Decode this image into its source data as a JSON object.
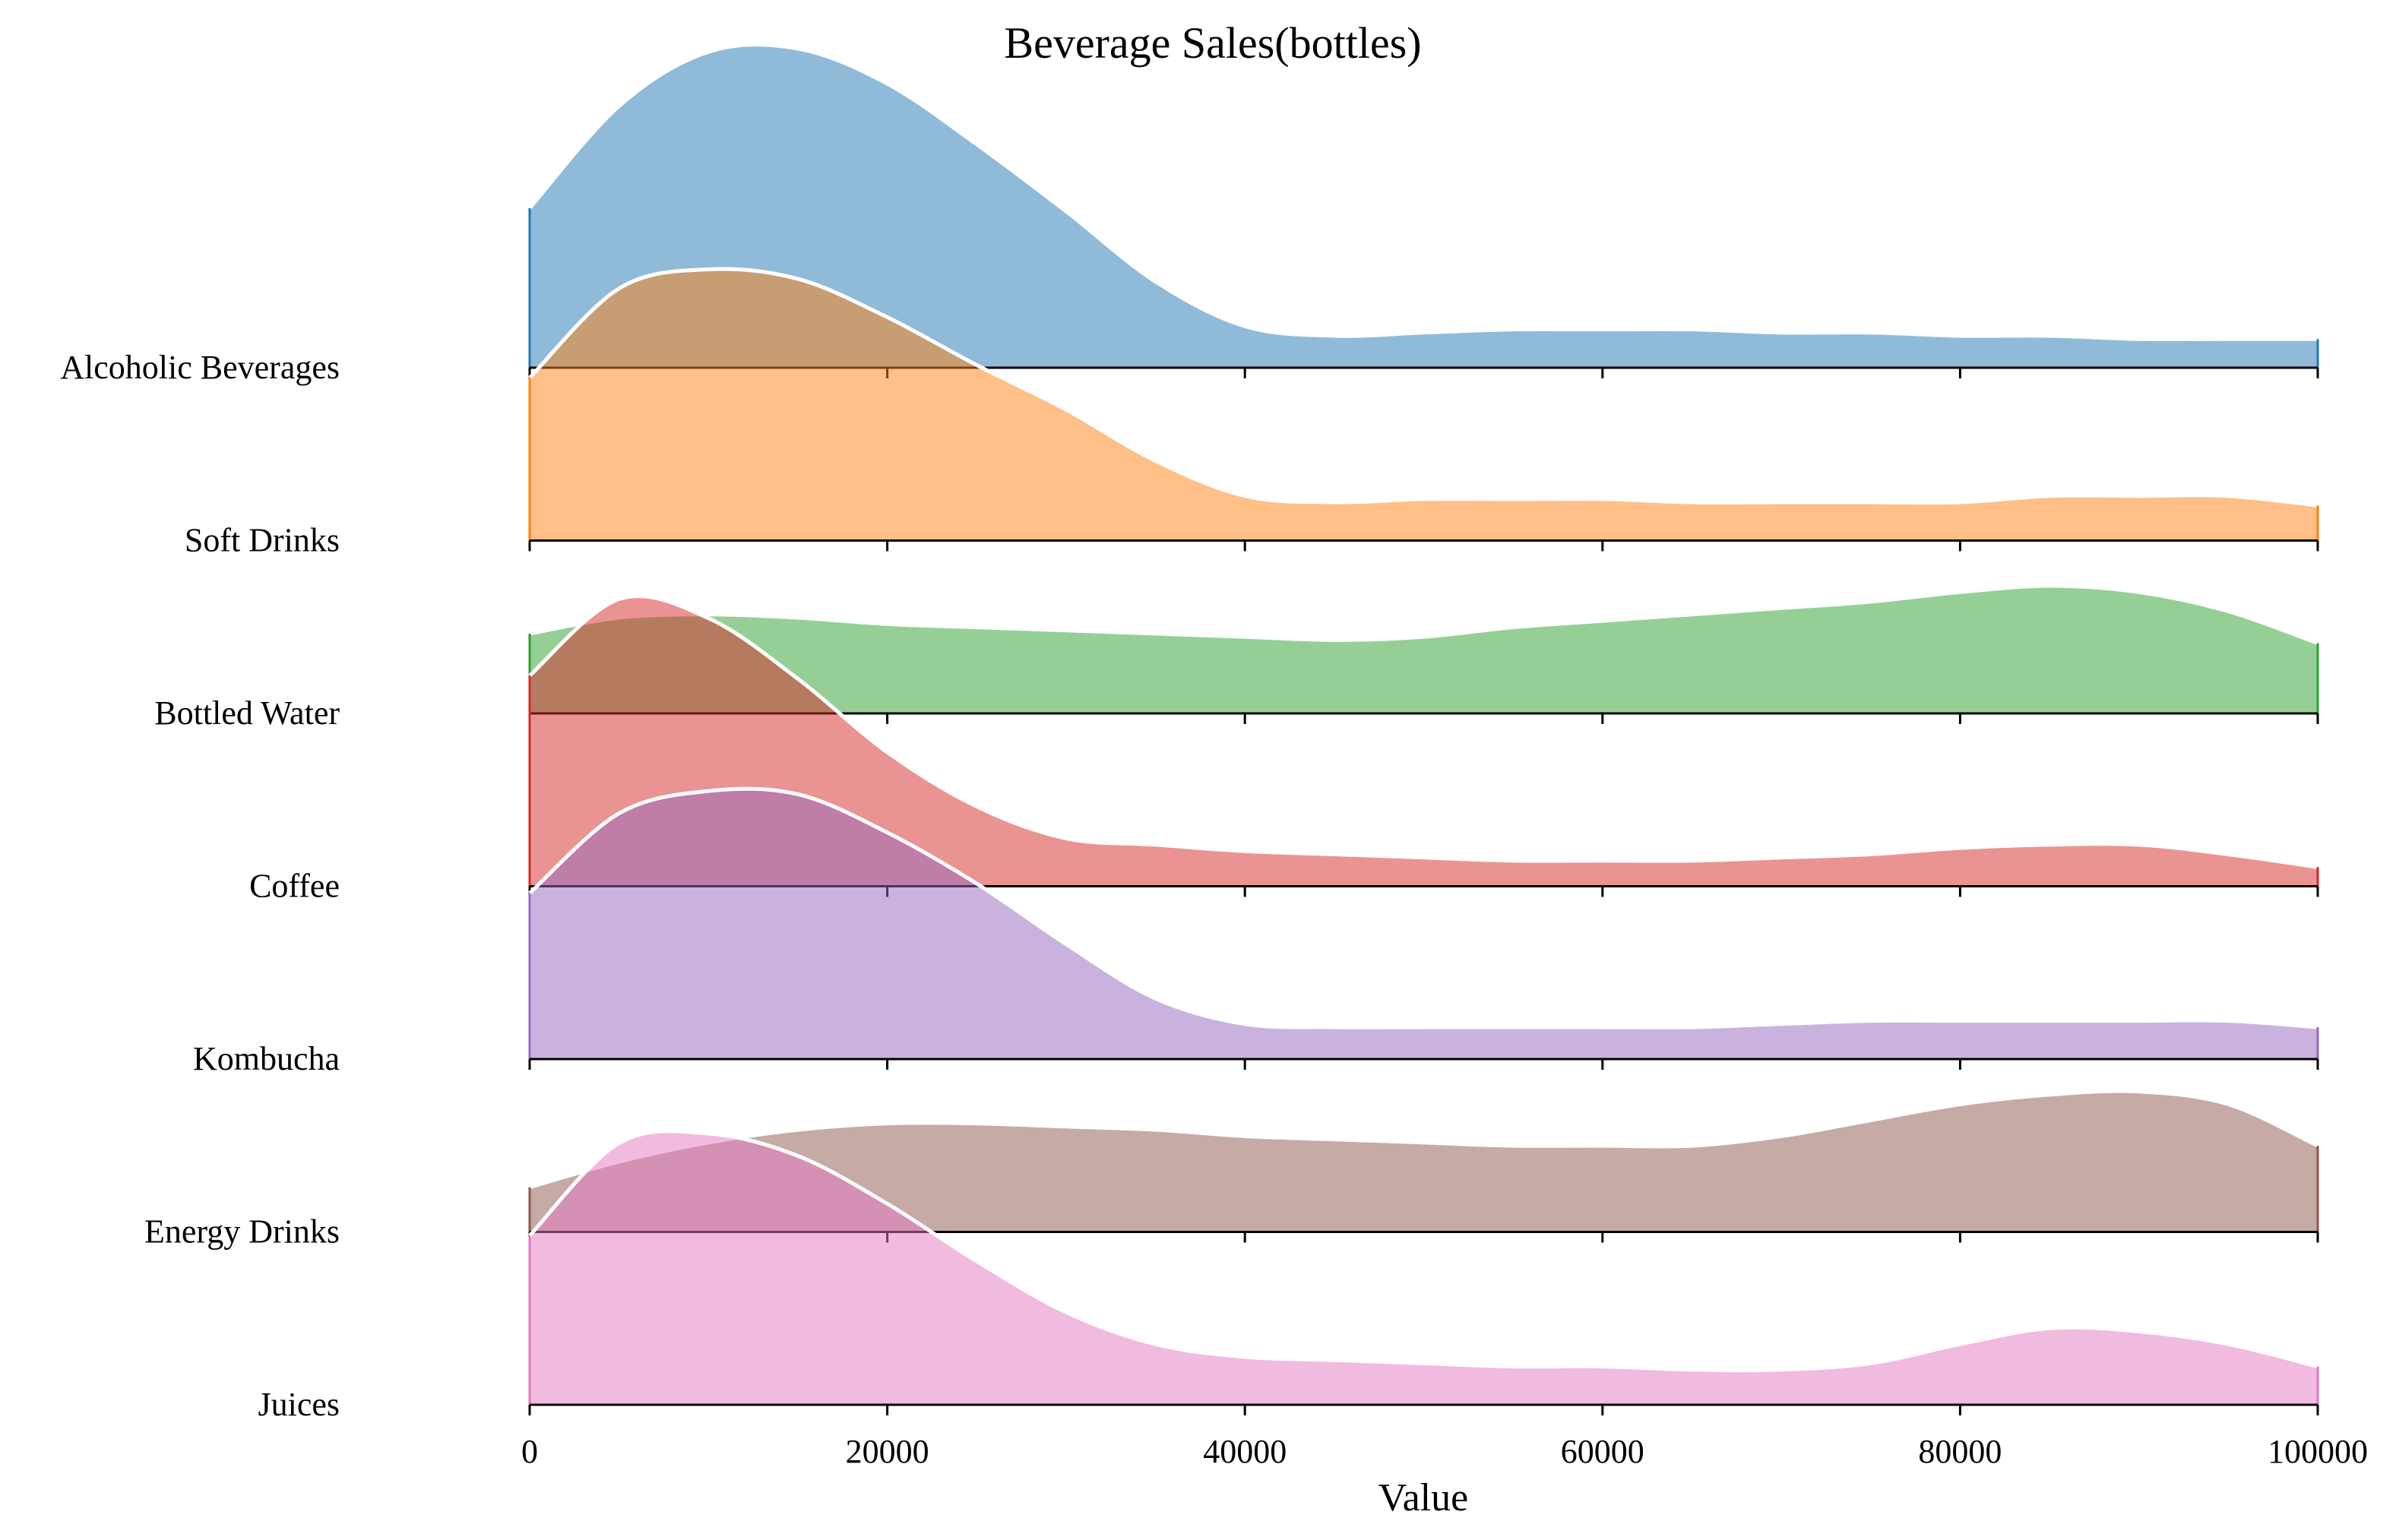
{
  "chart_data": {
    "type": "area",
    "subtype": "ridgeline",
    "title": "Beverage Sales(bottles)",
    "xlabel": "Value",
    "ylabel": "",
    "xlim": [
      0,
      100000
    ],
    "xticks": [
      "0",
      "20000",
      "40000",
      "60000",
      "80000",
      "100000"
    ],
    "grid": false,
    "x": [
      0,
      5000,
      10000,
      15000,
      20000,
      25000,
      30000,
      35000,
      40000,
      45000,
      50000,
      55000,
      60000,
      65000,
      70000,
      75000,
      80000,
      85000,
      90000,
      95000,
      100000
    ],
    "series": [
      {
        "name": "Alcoholic Beverages",
        "color": "#1f77b4",
        "values": [
          0.5,
          0.82,
          0.99,
          1.0,
          0.89,
          0.7,
          0.49,
          0.27,
          0.13,
          0.1,
          0.11,
          0.12,
          0.12,
          0.12,
          0.11,
          0.11,
          0.1,
          0.1,
          0.09,
          0.09,
          0.09
        ]
      },
      {
        "name": "Soft Drinks",
        "color": "#ff7f0e",
        "values": [
          0.51,
          0.79,
          0.85,
          0.82,
          0.7,
          0.55,
          0.41,
          0.25,
          0.14,
          0.12,
          0.13,
          0.13,
          0.13,
          0.12,
          0.12,
          0.12,
          0.12,
          0.14,
          0.14,
          0.14,
          0.11
        ]
      },
      {
        "name": "Bottled Water",
        "color": "#2ca02c",
        "values": [
          0.25,
          0.3,
          0.31,
          0.3,
          0.28,
          0.27,
          0.26,
          0.25,
          0.24,
          0.23,
          0.24,
          0.27,
          0.29,
          0.31,
          0.33,
          0.35,
          0.38,
          0.4,
          0.38,
          0.32,
          0.22
        ]
      },
      {
        "name": "Coffee",
        "color": "#d62728",
        "values": [
          0.66,
          0.9,
          0.84,
          0.65,
          0.42,
          0.25,
          0.15,
          0.13,
          0.11,
          0.1,
          0.09,
          0.08,
          0.08,
          0.08,
          0.09,
          0.1,
          0.12,
          0.13,
          0.13,
          0.1,
          0.06
        ]
      },
      {
        "name": "Kombucha",
        "color": "#9467bd",
        "values": [
          0.52,
          0.77,
          0.84,
          0.83,
          0.71,
          0.55,
          0.36,
          0.19,
          0.11,
          0.1,
          0.1,
          0.1,
          0.1,
          0.1,
          0.11,
          0.12,
          0.12,
          0.12,
          0.12,
          0.12,
          0.1
        ]
      },
      {
        "name": "Energy Drinks",
        "color": "#8c564b",
        "values": [
          0.14,
          0.22,
          0.28,
          0.32,
          0.34,
          0.34,
          0.33,
          0.32,
          0.3,
          0.29,
          0.28,
          0.27,
          0.27,
          0.27,
          0.3,
          0.35,
          0.4,
          0.43,
          0.44,
          0.4,
          0.27
        ]
      },
      {
        "name": "Juices",
        "color": "#e377c2",
        "values": [
          0.53,
          0.82,
          0.85,
          0.78,
          0.63,
          0.45,
          0.29,
          0.19,
          0.15,
          0.14,
          0.13,
          0.12,
          0.12,
          0.11,
          0.11,
          0.13,
          0.19,
          0.24,
          0.23,
          0.19,
          0.12
        ]
      }
    ]
  }
}
